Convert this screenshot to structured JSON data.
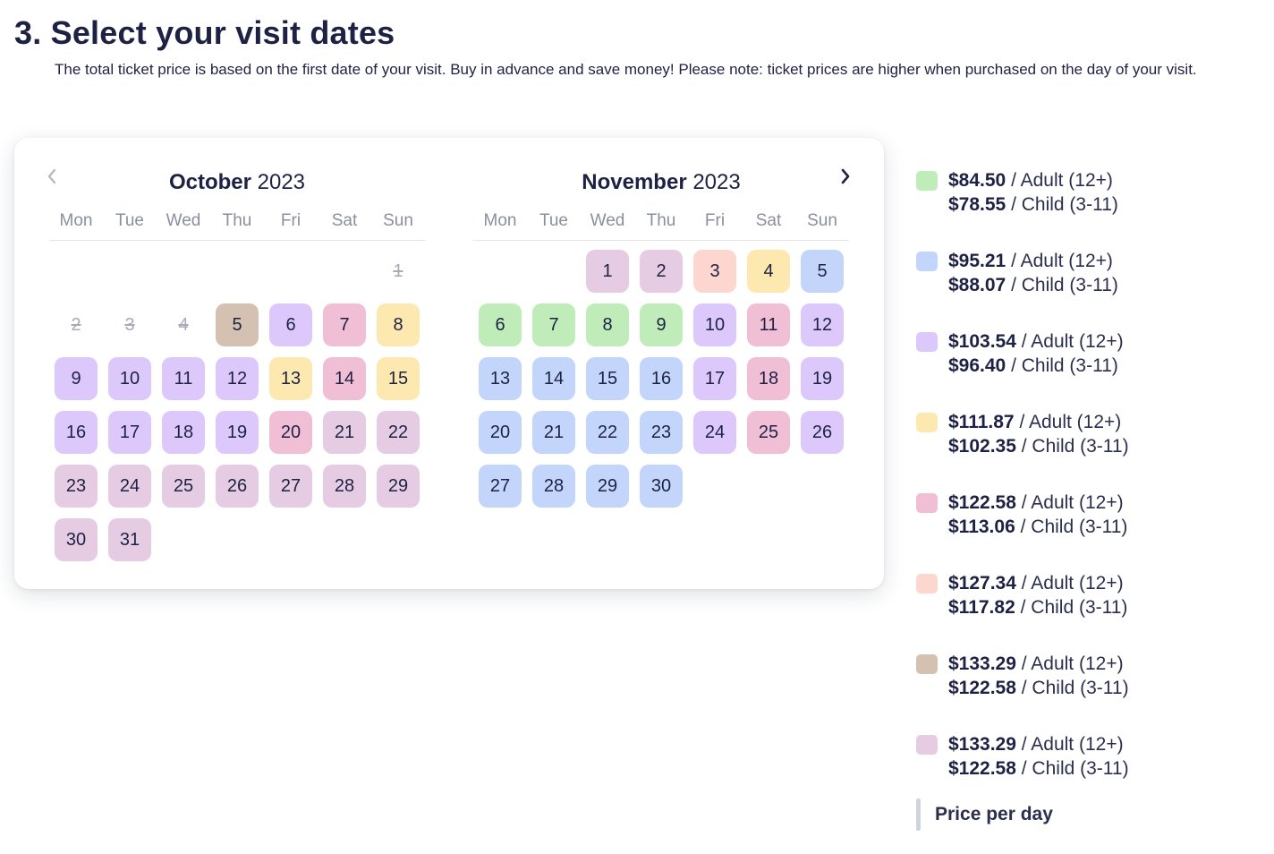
{
  "section": {
    "title": "3. Select your visit dates",
    "description": "The total ticket price is based on the first date of your visit. Buy in advance and save money! Please note: ticket prices are higher when purchased on the day of your visit."
  },
  "calendar": {
    "prev_icon": "chevron-left-icon",
    "next_icon": "chevron-right-icon",
    "weekdays": [
      "Mon",
      "Tue",
      "Wed",
      "Thu",
      "Fri",
      "Sat",
      "Sun"
    ],
    "months": [
      {
        "name": "October",
        "year": "2023",
        "start_offset": 6,
        "days": [
          {
            "d": "1",
            "tier": null,
            "disabled": true
          },
          {
            "d": "2",
            "tier": null,
            "disabled": true
          },
          {
            "d": "3",
            "tier": null,
            "disabled": true
          },
          {
            "d": "4",
            "tier": null,
            "disabled": true
          },
          {
            "d": "5",
            "tier": "taupe"
          },
          {
            "d": "6",
            "tier": "lavender"
          },
          {
            "d": "7",
            "tier": "pink"
          },
          {
            "d": "8",
            "tier": "yellow"
          },
          {
            "d": "9",
            "tier": "lavender"
          },
          {
            "d": "10",
            "tier": "lavender"
          },
          {
            "d": "11",
            "tier": "lavender"
          },
          {
            "d": "12",
            "tier": "lavender"
          },
          {
            "d": "13",
            "tier": "yellow"
          },
          {
            "d": "14",
            "tier": "pink"
          },
          {
            "d": "15",
            "tier": "yellow"
          },
          {
            "d": "16",
            "tier": "lavender"
          },
          {
            "d": "17",
            "tier": "lavender"
          },
          {
            "d": "18",
            "tier": "lavender"
          },
          {
            "d": "19",
            "tier": "lavender"
          },
          {
            "d": "20",
            "tier": "pink"
          },
          {
            "d": "21",
            "tier": "mauve"
          },
          {
            "d": "22",
            "tier": "mauve"
          },
          {
            "d": "23",
            "tier": "mauve"
          },
          {
            "d": "24",
            "tier": "mauve"
          },
          {
            "d": "25",
            "tier": "mauve"
          },
          {
            "d": "26",
            "tier": "mauve"
          },
          {
            "d": "27",
            "tier": "mauve"
          },
          {
            "d": "28",
            "tier": "mauve"
          },
          {
            "d": "29",
            "tier": "mauve"
          },
          {
            "d": "30",
            "tier": "mauve"
          },
          {
            "d": "31",
            "tier": "mauve"
          }
        ]
      },
      {
        "name": "November",
        "year": "2023",
        "start_offset": 2,
        "days": [
          {
            "d": "1",
            "tier": "mauve"
          },
          {
            "d": "2",
            "tier": "mauve"
          },
          {
            "d": "3",
            "tier": "peach"
          },
          {
            "d": "4",
            "tier": "yellow"
          },
          {
            "d": "5",
            "tier": "blue"
          },
          {
            "d": "6",
            "tier": "green"
          },
          {
            "d": "7",
            "tier": "green"
          },
          {
            "d": "8",
            "tier": "green"
          },
          {
            "d": "9",
            "tier": "green"
          },
          {
            "d": "10",
            "tier": "lavender"
          },
          {
            "d": "11",
            "tier": "pink"
          },
          {
            "d": "12",
            "tier": "lavender"
          },
          {
            "d": "13",
            "tier": "blue"
          },
          {
            "d": "14",
            "tier": "blue"
          },
          {
            "d": "15",
            "tier": "blue"
          },
          {
            "d": "16",
            "tier": "blue"
          },
          {
            "d": "17",
            "tier": "lavender"
          },
          {
            "d": "18",
            "tier": "pink"
          },
          {
            "d": "19",
            "tier": "lavender"
          },
          {
            "d": "20",
            "tier": "blue"
          },
          {
            "d": "21",
            "tier": "blue"
          },
          {
            "d": "22",
            "tier": "blue"
          },
          {
            "d": "23",
            "tier": "blue"
          },
          {
            "d": "24",
            "tier": "lavender"
          },
          {
            "d": "25",
            "tier": "pink"
          },
          {
            "d": "26",
            "tier": "lavender"
          },
          {
            "d": "27",
            "tier": "blue"
          },
          {
            "d": "28",
            "tier": "blue"
          },
          {
            "d": "29",
            "tier": "blue"
          },
          {
            "d": "30",
            "tier": "blue"
          }
        ]
      }
    ]
  },
  "tier_colors": {
    "green": "#bfecb8",
    "blue": "#c3d5fb",
    "lavender": "#dcc8fb",
    "yellow": "#fde9b0",
    "pink": "#f1bfd5",
    "peach": "#fcd6cf",
    "taupe": "#d4c1b2",
    "mauve": "#e6cce2"
  },
  "legend": [
    {
      "tier": "green",
      "adult_price": "$84.50",
      "adult_label": "/ Adult (12+)",
      "child_price": "$78.55",
      "child_label": "/ Child (3-11)"
    },
    {
      "tier": "blue",
      "adult_price": "$95.21",
      "adult_label": "/ Adult (12+)",
      "child_price": "$88.07",
      "child_label": "/ Child (3-11)"
    },
    {
      "tier": "lavender",
      "adult_price": "$103.54",
      "adult_label": "/ Adult (12+)",
      "child_price": "$96.40",
      "child_label": "/ Child (3-11)"
    },
    {
      "tier": "yellow",
      "adult_price": "$111.87",
      "adult_label": "/ Adult (12+)",
      "child_price": "$102.35",
      "child_label": "/ Child (3-11)"
    },
    {
      "tier": "pink",
      "adult_price": "$122.58",
      "adult_label": "/ Adult (12+)",
      "child_price": "$113.06",
      "child_label": "/ Child (3-11)"
    },
    {
      "tier": "peach",
      "adult_price": "$127.34",
      "adult_label": "/ Adult (12+)",
      "child_price": "$117.82",
      "child_label": "/ Child (3-11)"
    },
    {
      "tier": "taupe",
      "adult_price": "$133.29",
      "adult_label": "/ Adult (12+)",
      "child_price": "$122.58",
      "child_label": "/ Child (3-11)"
    },
    {
      "tier": "mauve",
      "adult_price": "$133.29",
      "adult_label": "/ Adult (12+)",
      "child_price": "$122.58",
      "child_label": "/ Child (3-11)"
    }
  ],
  "price_per_day_label": "Price per day"
}
